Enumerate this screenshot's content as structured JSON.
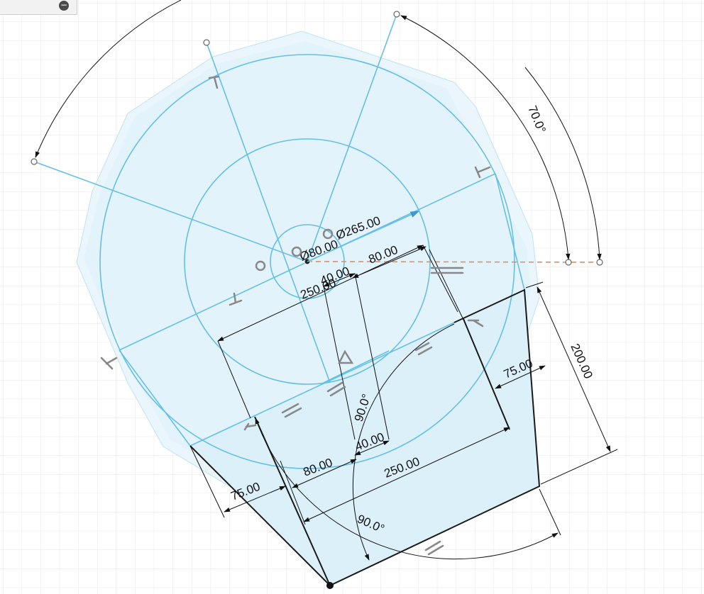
{
  "title": "",
  "dimensions": {
    "angle_top": "70.0°",
    "dia_265": "Ø265.00",
    "dia_80": "Ø80.00",
    "r_80": "80.00",
    "r_40": "40.00",
    "d_250_mid": "250.00",
    "height_200": "200.00",
    "w_75_right": "75.00",
    "angle_90_mid": "90.0°",
    "w_40_bottom": "40.00",
    "w_80_bottom": "80.00",
    "w_250_bottom": "250.00",
    "w_75_left": "75.00",
    "angle_90_bottom": "90.0°"
  },
  "colors": {
    "sketch_blue": "#64c0e6",
    "region_fill": "#e8f5fc",
    "hatch_fill": "#d6eef9",
    "grid": "#e6e6e6",
    "construction": "#e0905a",
    "dimension": "#111111"
  },
  "panel": {
    "icon": "minus-circle-icon",
    "glyph": "−"
  }
}
